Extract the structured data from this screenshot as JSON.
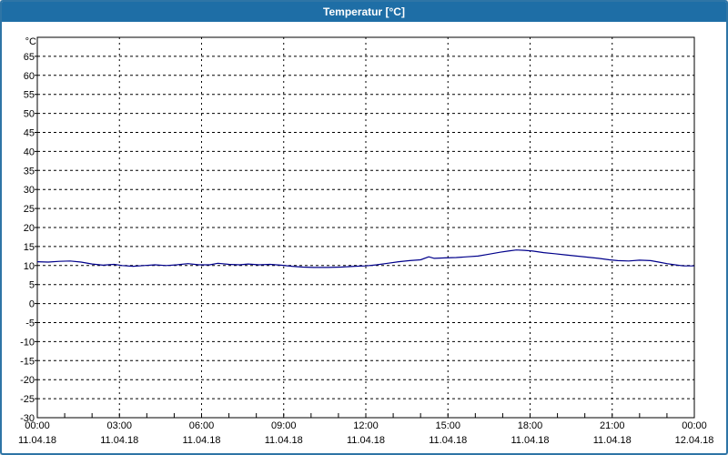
{
  "window": {
    "title": "Temperatur [°C]",
    "titlebar_color": "#1e6ea6",
    "border_color": "#2e75a6",
    "background_color": "#ffffff"
  },
  "chart_data": {
    "type": "line",
    "title": "Temperatur [°C]",
    "y_unit_label": "°C",
    "ylim": [
      -30,
      70
    ],
    "xlim_hours": [
      0,
      24
    ],
    "grid": "dashed",
    "grid_color": "#000000",
    "y_ticks": [
      65,
      60,
      55,
      50,
      45,
      40,
      35,
      30,
      25,
      20,
      15,
      10,
      5,
      0,
      -5,
      -10,
      -15,
      -20,
      -25,
      -30
    ],
    "x_ticks": [
      {
        "hour": 0,
        "time": "00:00",
        "date": "11.04.18"
      },
      {
        "hour": 3,
        "time": "03:00",
        "date": "11.04.18"
      },
      {
        "hour": 6,
        "time": "06:00",
        "date": "11.04.18"
      },
      {
        "hour": 9,
        "time": "09:00",
        "date": "11.04.18"
      },
      {
        "hour": 12,
        "time": "12:00",
        "date": "11.04.18"
      },
      {
        "hour": 15,
        "time": "15:00",
        "date": "11.04.18"
      },
      {
        "hour": 18,
        "time": "18:00",
        "date": "11.04.18"
      },
      {
        "hour": 21,
        "time": "21:00",
        "date": "11.04.18"
      },
      {
        "hour": 24,
        "time": "00:00",
        "date": "12.04.18"
      }
    ],
    "series": [
      {
        "name": "Temperatur",
        "color": "#00008b",
        "points": [
          [
            0.0,
            11.0
          ],
          [
            0.4,
            10.9
          ],
          [
            0.8,
            11.1
          ],
          [
            1.2,
            11.2
          ],
          [
            1.6,
            10.9
          ],
          [
            2.0,
            10.4
          ],
          [
            2.4,
            10.1
          ],
          [
            2.8,
            10.3
          ],
          [
            3.1,
            10.0
          ],
          [
            3.5,
            9.8
          ],
          [
            3.9,
            10.0
          ],
          [
            4.3,
            10.2
          ],
          [
            4.7,
            10.0
          ],
          [
            5.1,
            10.2
          ],
          [
            5.5,
            10.5
          ],
          [
            5.9,
            10.2
          ],
          [
            6.3,
            10.2
          ],
          [
            6.6,
            10.6
          ],
          [
            7.0,
            10.3
          ],
          [
            7.4,
            10.2
          ],
          [
            7.7,
            10.4
          ],
          [
            8.1,
            10.2
          ],
          [
            8.5,
            10.3
          ],
          [
            8.9,
            10.1
          ],
          [
            9.3,
            9.8
          ],
          [
            9.7,
            9.6
          ],
          [
            10.1,
            9.5
          ],
          [
            10.6,
            9.5
          ],
          [
            11.1,
            9.6
          ],
          [
            11.6,
            9.8
          ],
          [
            12.0,
            9.9
          ],
          [
            12.4,
            10.2
          ],
          [
            12.8,
            10.6
          ],
          [
            13.2,
            11.0
          ],
          [
            13.6,
            11.3
          ],
          [
            14.0,
            11.5
          ],
          [
            14.3,
            12.3
          ],
          [
            14.5,
            11.9
          ],
          [
            14.9,
            12.0
          ],
          [
            15.3,
            12.1
          ],
          [
            15.7,
            12.3
          ],
          [
            16.1,
            12.5
          ],
          [
            16.5,
            13.0
          ],
          [
            16.9,
            13.5
          ],
          [
            17.2,
            13.8
          ],
          [
            17.5,
            14.1
          ],
          [
            17.8,
            14.0
          ],
          [
            18.1,
            13.8
          ],
          [
            18.5,
            13.4
          ],
          [
            18.9,
            13.1
          ],
          [
            19.3,
            12.8
          ],
          [
            19.7,
            12.5
          ],
          [
            20.1,
            12.2
          ],
          [
            20.5,
            11.9
          ],
          [
            20.9,
            11.5
          ],
          [
            21.2,
            11.3
          ],
          [
            21.6,
            11.2
          ],
          [
            22.0,
            11.4
          ],
          [
            22.4,
            11.3
          ],
          [
            22.7,
            10.9
          ],
          [
            23.0,
            10.5
          ],
          [
            23.3,
            10.2
          ],
          [
            23.6,
            9.9
          ],
          [
            24.0,
            9.9
          ]
        ]
      }
    ]
  }
}
